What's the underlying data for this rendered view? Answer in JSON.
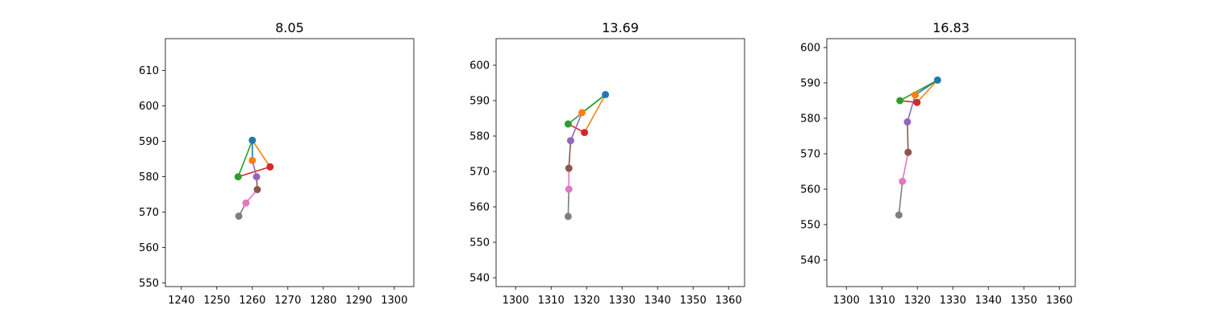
{
  "chart_data": [
    {
      "type": "line",
      "title": "8.05",
      "xlabel": "",
      "ylabel": "",
      "xlim": [
        1235.5,
        1305.5
      ],
      "ylim": [
        549,
        619
      ],
      "xticks": [
        1240,
        1250,
        1260,
        1270,
        1280,
        1290,
        1300
      ],
      "yticks": [
        550,
        560,
        570,
        580,
        590,
        600,
        610
      ],
      "grid": false,
      "points": [
        {
          "x": 1260.0,
          "y": 590.3,
          "color": "#1f77b4"
        },
        {
          "x": 1260.0,
          "y": 584.6,
          "color": "#ff7f0e"
        },
        {
          "x": 1256.0,
          "y": 580.0,
          "color": "#2ca02c"
        },
        {
          "x": 1265.0,
          "y": 582.8,
          "color": "#d62728"
        },
        {
          "x": 1261.2,
          "y": 580.0,
          "color": "#9467bd"
        },
        {
          "x": 1261.4,
          "y": 576.4,
          "color": "#8c564b"
        },
        {
          "x": 1258.2,
          "y": 572.6,
          "color": "#e377c2"
        },
        {
          "x": 1256.2,
          "y": 568.9,
          "color": "#7f7f7f"
        }
      ]
    },
    {
      "type": "line",
      "title": "13.69",
      "xlabel": "",
      "ylabel": "",
      "xlim": [
        1294.5,
        1364.5
      ],
      "ylim": [
        537.5,
        607.5
      ],
      "xticks": [
        1300,
        1310,
        1320,
        1330,
        1340,
        1350,
        1360
      ],
      "yticks": [
        540,
        550,
        560,
        570,
        580,
        590,
        600
      ],
      "grid": false,
      "points": [
        {
          "x": 1325.3,
          "y": 591.7,
          "color": "#1f77b4"
        },
        {
          "x": 1318.7,
          "y": 586.6,
          "color": "#ff7f0e"
        },
        {
          "x": 1314.8,
          "y": 583.4,
          "color": "#2ca02c"
        },
        {
          "x": 1319.4,
          "y": 581.0,
          "color": "#d62728"
        },
        {
          "x": 1315.5,
          "y": 578.7,
          "color": "#9467bd"
        },
        {
          "x": 1315.0,
          "y": 570.9,
          "color": "#8c564b"
        },
        {
          "x": 1315.0,
          "y": 565.0,
          "color": "#e377c2"
        },
        {
          "x": 1314.8,
          "y": 557.3,
          "color": "#7f7f7f"
        }
      ]
    },
    {
      "type": "line",
      "title": "16.83",
      "xlabel": "",
      "ylabel": "",
      "xlim": [
        1294.5,
        1364.5
      ],
      "ylim": [
        532.5,
        602.5
      ],
      "xticks": [
        1300,
        1310,
        1320,
        1330,
        1340,
        1350,
        1360
      ],
      "yticks": [
        540,
        550,
        560,
        570,
        580,
        590,
        600
      ],
      "grid": false,
      "points": [
        {
          "x": 1325.7,
          "y": 590.8,
          "color": "#1f77b4"
        },
        {
          "x": 1319.4,
          "y": 586.6,
          "color": "#ff7f0e"
        },
        {
          "x": 1315.1,
          "y": 585.0,
          "color": "#2ca02c"
        },
        {
          "x": 1319.9,
          "y": 584.5,
          "color": "#d62728"
        },
        {
          "x": 1317.2,
          "y": 579.0,
          "color": "#9467bd"
        },
        {
          "x": 1317.4,
          "y": 570.4,
          "color": "#8c564b"
        },
        {
          "x": 1315.8,
          "y": 562.2,
          "color": "#e377c2"
        },
        {
          "x": 1314.8,
          "y": 552.7,
          "color": "#7f7f7f"
        }
      ]
    }
  ],
  "skeleton": {
    "edges": [
      {
        "from": 0,
        "to": 1,
        "color": "#1f77b4"
      },
      {
        "from": 0,
        "to": 2,
        "color": "#2ca02c"
      },
      {
        "from": 0,
        "to": 3,
        "color": "#ff7f0e"
      },
      {
        "from": 2,
        "to": 3,
        "color": "#d62728"
      },
      {
        "from": 1,
        "to": 4,
        "color": "#9467bd"
      },
      {
        "from": 4,
        "to": 5,
        "color": "#8c564b"
      },
      {
        "from": 5,
        "to": 6,
        "color": "#e377c2"
      },
      {
        "from": 6,
        "to": 7,
        "color": "#7f7f7f"
      }
    ]
  }
}
